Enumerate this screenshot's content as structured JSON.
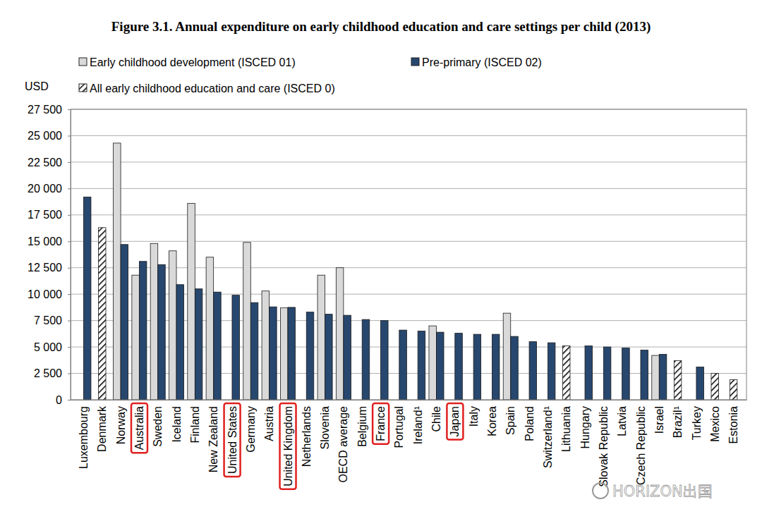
{
  "chart_data": {
    "type": "bar",
    "title": "Figure 3.1. Annual expenditure on early childhood education and care settings per child (2013)",
    "y_label": "USD",
    "categories": [
      "Luxembourg",
      "Denmark",
      "Norway",
      "Australia",
      "Sweden",
      "Iceland",
      "Finland",
      "New Zealand",
      "United States",
      "Germany",
      "Austria",
      "United Kingdom",
      "Netherlands",
      "Slovenia",
      "OECD average",
      "Belgium",
      "France",
      "Portugal",
      "Ireland¹",
      "Chile",
      "Japan",
      "Italy",
      "Korea",
      "Spain",
      "Poland",
      "Switzerland¹",
      "Lithuania",
      "Hungary",
      "Slovak Republic",
      "Latvia",
      "Czech Republic",
      "Israel",
      "Brazil¹",
      "Turkey",
      "Mexico",
      "Estonia"
    ],
    "series": [
      {
        "name": "Early childhood development (ISCED 01)",
        "color": "#d9d9d9",
        "marker": "solid",
        "values": [
          null,
          null,
          24300,
          11800,
          14800,
          14100,
          18600,
          13500,
          null,
          14900,
          10300,
          8700,
          null,
          11800,
          12500,
          null,
          null,
          null,
          null,
          7000,
          null,
          null,
          null,
          8200,
          null,
          null,
          null,
          null,
          null,
          null,
          null,
          4200,
          null,
          null,
          null,
          null
        ]
      },
      {
        "name": "Pre-primary (ISCED 02)",
        "color": "#27476e",
        "marker": "solid",
        "values": [
          19200,
          null,
          14700,
          13100,
          12800,
          10900,
          10500,
          10200,
          9900,
          9200,
          8800,
          8750,
          8300,
          8100,
          8000,
          7600,
          7500,
          6600,
          6500,
          6400,
          6300,
          6200,
          6200,
          6000,
          5500,
          5400,
          null,
          5100,
          5000,
          4900,
          4700,
          4300,
          null,
          3100,
          null,
          null
        ]
      },
      {
        "name": "All early childhood education and care (ISCED 0)",
        "color": "#000000",
        "marker": "hatch",
        "values": [
          null,
          16300,
          null,
          null,
          null,
          null,
          null,
          null,
          null,
          null,
          null,
          null,
          null,
          null,
          null,
          null,
          null,
          null,
          null,
          null,
          null,
          null,
          null,
          null,
          null,
          null,
          5100,
          null,
          null,
          null,
          null,
          null,
          3700,
          null,
          2500,
          1900
        ]
      }
    ],
    "ylim": [
      0,
      27500
    ],
    "yticks": [
      0,
      {
        "value": 2500,
        "label": "2 500"
      },
      {
        "value": 5000,
        "label": "5 000"
      },
      {
        "value": 7500,
        "label": "7 500"
      },
      {
        "value": 10000,
        "label": "10 000"
      },
      {
        "value": 12500,
        "label": "12 500"
      },
      {
        "value": 15000,
        "label": "15 000"
      },
      {
        "value": 17500,
        "label": "17 500"
      },
      {
        "value": 20000,
        "label": "20 000"
      },
      {
        "value": 22500,
        "label": "22 500"
      },
      {
        "value": 25000,
        "label": "25 000"
      },
      {
        "value": 27500,
        "label": "27 500"
      }
    ],
    "grid": true,
    "legend": "top-left",
    "annotations": {
      "watermark": "HORIZON出国",
      "boxed_categories": [
        "Australia",
        "United States",
        "United Kingdom",
        "France",
        "Japan"
      ]
    }
  }
}
